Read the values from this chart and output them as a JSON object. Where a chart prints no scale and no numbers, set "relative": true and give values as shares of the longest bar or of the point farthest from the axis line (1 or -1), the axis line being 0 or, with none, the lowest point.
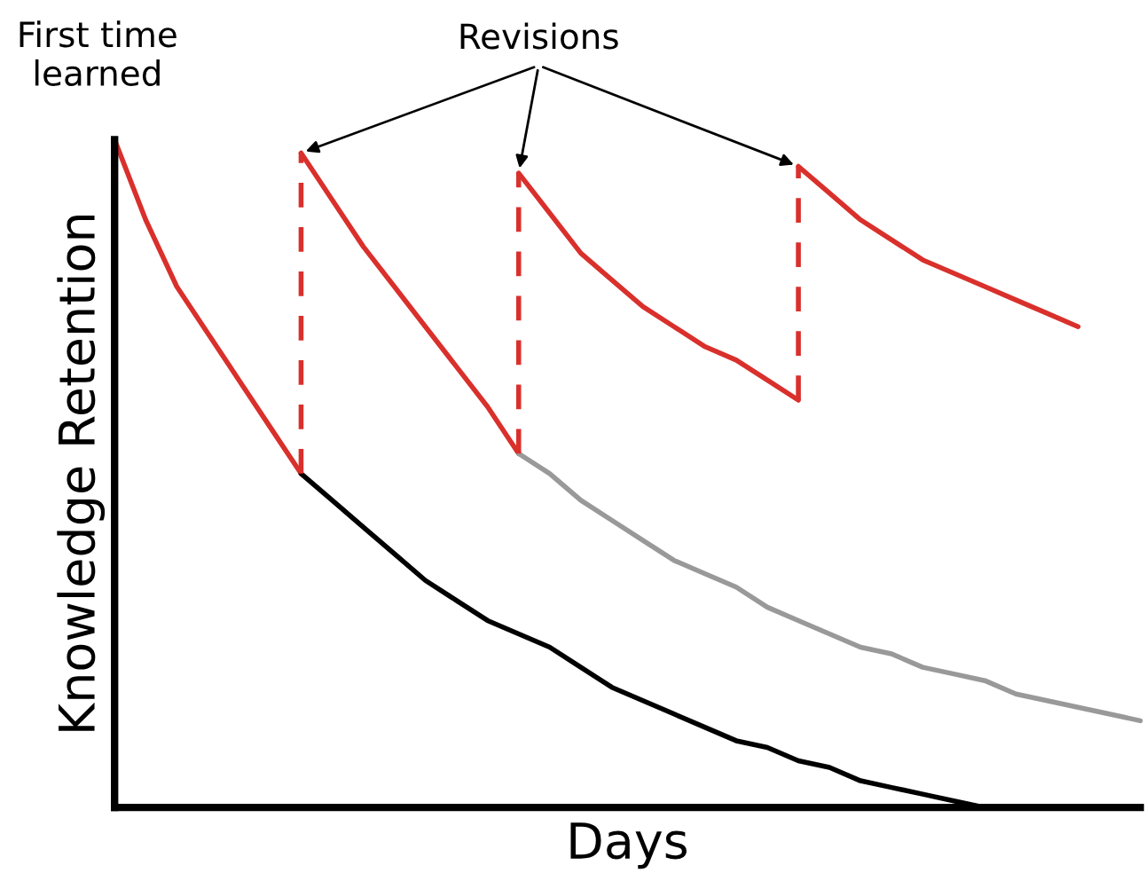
{
  "chart_data": {
    "type": "line",
    "relative": true,
    "xlabel": "Days",
    "ylabel": "Knowledge Retention",
    "annotations": [
      "First time learned",
      "Revisions"
    ],
    "categories": [
      null,
      null,
      null,
      null,
      null,
      null,
      null,
      null,
      null,
      null,
      null,
      null,
      null,
      null,
      null,
      null,
      null,
      null,
      null,
      null,
      null,
      null,
      null,
      null,
      null,
      null,
      null,
      null,
      null,
      null,
      null,
      null,
      null,
      null
    ],
    "series": [
      {
        "color": "#d9302c",
        "values": [
          1.0,
          0.88,
          0.78,
          0.71,
          0.64,
          0.57,
          0.5,
          null,
          null,
          null,
          null,
          null,
          null,
          null,
          null,
          null,
          null,
          null,
          null,
          null,
          null,
          null,
          null,
          null,
          null,
          null,
          null,
          null,
          null,
          null,
          null,
          null,
          null,
          null
        ]
      },
      {
        "color": "#000000",
        "values": [
          null,
          null,
          null,
          null,
          null,
          null,
          0.5,
          0.46,
          0.42,
          0.38,
          0.34,
          0.31,
          0.28,
          0.26,
          0.24,
          0.21,
          0.18,
          0.16,
          0.14,
          0.12,
          0.1,
          0.09,
          0.07,
          0.06,
          0.04,
          0.03,
          0.02,
          0.01,
          0.0,
          null,
          null,
          null,
          null,
          null
        ]
      },
      {
        "color": "#d9302c",
        "values": [
          null,
          null,
          null,
          null,
          null,
          null,
          0.98,
          0.91,
          0.84,
          0.78,
          0.72,
          0.66,
          0.6,
          0.53,
          null,
          null,
          null,
          null,
          null,
          null,
          null,
          null,
          null,
          null,
          null,
          null,
          null,
          null,
          null,
          null,
          null,
          null,
          null,
          null
        ]
      },
      {
        "color": "#999999",
        "values": [
          null,
          null,
          null,
          null,
          null,
          null,
          null,
          null,
          null,
          null,
          null,
          null,
          null,
          0.53,
          0.5,
          0.46,
          0.43,
          0.4,
          0.37,
          0.35,
          0.33,
          0.3,
          0.28,
          0.26,
          0.24,
          0.23,
          0.21,
          0.2,
          0.19,
          0.17,
          0.16,
          0.15,
          0.14,
          0.13
        ]
      },
      {
        "color": "#d9302c",
        "values": [
          null,
          null,
          null,
          null,
          null,
          null,
          null,
          null,
          null,
          null,
          null,
          null,
          null,
          0.95,
          0.89,
          0.83,
          0.79,
          0.75,
          0.72,
          0.69,
          0.67,
          0.64,
          0.61,
          null,
          null,
          null,
          null,
          null,
          null,
          null,
          null,
          null,
          null,
          null
        ]
      },
      {
        "color": "#d9302c",
        "values": [
          null,
          null,
          null,
          null,
          null,
          null,
          null,
          null,
          null,
          null,
          null,
          null,
          null,
          null,
          null,
          null,
          null,
          null,
          null,
          null,
          null,
          null,
          0.96,
          0.92,
          0.88,
          0.85,
          0.82,
          0.8,
          0.78,
          0.76,
          0.74,
          0.72,
          null,
          null
        ]
      }
    ]
  }
}
